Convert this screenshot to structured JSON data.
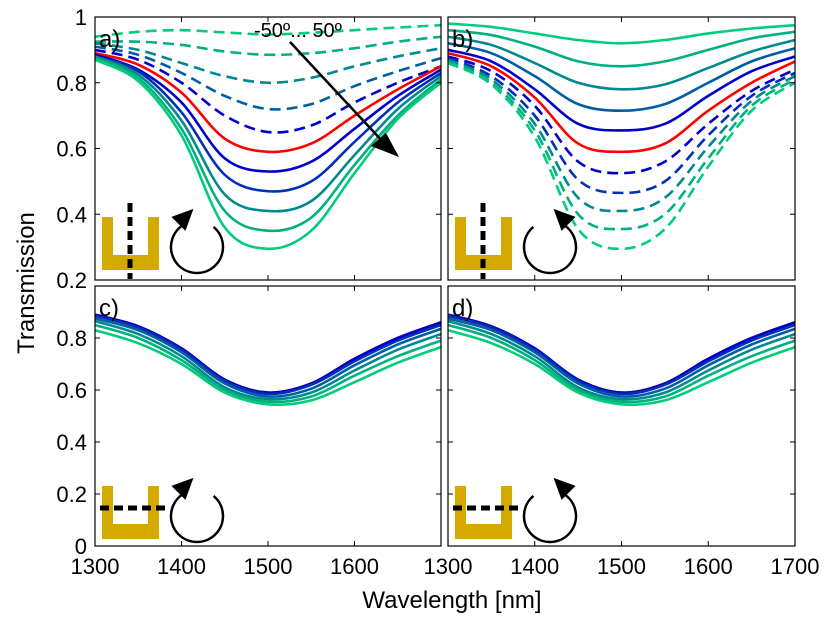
{
  "figure": {
    "ylabel": "Transmission",
    "xlabel": "Wavelength [nm]",
    "angle_annotation": "-50º... 50º"
  },
  "colors": {
    "normal": "#ff0000",
    "ramp": [
      "#0000cc",
      "#0030b8",
      "#005ea4",
      "#008a8f",
      "#00b080",
      "#00cc7a"
    ],
    "icon": "#d4a900",
    "frame": "#000000"
  },
  "chart_data": [
    {
      "type": "line",
      "panel": "a)",
      "x": [
        1300,
        1350,
        1400,
        1450,
        1500,
        1550,
        1600,
        1650,
        1700
      ],
      "xlim": [
        1300,
        1700
      ],
      "ylim": [
        0.2,
        1.0
      ],
      "yticks": [
        0.2,
        0.4,
        0.6,
        0.8,
        1.0
      ],
      "series": [
        {
          "values": [
            0.94,
            0.955,
            0.96,
            0.953,
            0.947,
            0.952,
            0.96,
            0.968,
            0.975
          ],
          "style": "dashed",
          "shade": 5
        },
        {
          "values": [
            0.925,
            0.925,
            0.915,
            0.895,
            0.885,
            0.89,
            0.905,
            0.925,
            0.94
          ],
          "style": "dashed",
          "shade": 4
        },
        {
          "values": [
            0.92,
            0.9,
            0.86,
            0.82,
            0.8,
            0.815,
            0.85,
            0.88,
            0.905
          ],
          "style": "dashed",
          "shade": 3
        },
        {
          "values": [
            0.91,
            0.885,
            0.83,
            0.76,
            0.72,
            0.735,
            0.79,
            0.835,
            0.875
          ],
          "style": "dashed",
          "shade": 2
        },
        {
          "values": [
            0.9,
            0.87,
            0.8,
            0.7,
            0.65,
            0.67,
            0.74,
            0.8,
            0.85
          ],
          "style": "dashed",
          "shade": 0
        },
        {
          "values": [
            0.89,
            0.855,
            0.77,
            0.63,
            0.59,
            0.615,
            0.7,
            0.78,
            0.85
          ],
          "style": "solid",
          "shade": -1
        },
        {
          "values": [
            0.885,
            0.84,
            0.74,
            0.57,
            0.53,
            0.56,
            0.66,
            0.76,
            0.84
          ],
          "style": "solid",
          "shade": 0
        },
        {
          "values": [
            0.88,
            0.835,
            0.71,
            0.52,
            0.47,
            0.5,
            0.62,
            0.74,
            0.83
          ],
          "style": "solid",
          "shade": 1
        },
        {
          "values": [
            0.88,
            0.825,
            0.685,
            0.46,
            0.41,
            0.44,
            0.58,
            0.72,
            0.82
          ],
          "style": "solid",
          "shade": 3
        },
        {
          "values": [
            0.875,
            0.815,
            0.66,
            0.41,
            0.35,
            0.39,
            0.55,
            0.7,
            0.81
          ],
          "style": "solid",
          "shade": 4
        },
        {
          "values": [
            0.87,
            0.805,
            0.64,
            0.36,
            0.295,
            0.35,
            0.525,
            0.69,
            0.8
          ],
          "style": "solid",
          "shade": 5
        }
      ]
    },
    {
      "type": "line",
      "panel": "b)",
      "x": [
        1300,
        1350,
        1400,
        1450,
        1500,
        1550,
        1600,
        1650,
        1700
      ],
      "xlim": [
        1300,
        1700
      ],
      "ylim": [
        0.2,
        1.0
      ],
      "yticks": [
        0.2,
        0.4,
        0.6,
        0.8,
        1.0
      ],
      "series": [
        {
          "values": [
            0.98,
            0.97,
            0.95,
            0.93,
            0.92,
            0.93,
            0.95,
            0.965,
            0.975
          ],
          "style": "solid",
          "shade": 5
        },
        {
          "values": [
            0.96,
            0.945,
            0.91,
            0.865,
            0.85,
            0.865,
            0.9,
            0.935,
            0.955
          ],
          "style": "solid",
          "shade": 4
        },
        {
          "values": [
            0.94,
            0.915,
            0.86,
            0.8,
            0.78,
            0.795,
            0.845,
            0.895,
            0.93
          ],
          "style": "solid",
          "shade": 3
        },
        {
          "values": [
            0.92,
            0.89,
            0.82,
            0.735,
            0.715,
            0.735,
            0.8,
            0.865,
            0.905
          ],
          "style": "solid",
          "shade": 2
        },
        {
          "values": [
            0.9,
            0.865,
            0.78,
            0.675,
            0.655,
            0.675,
            0.76,
            0.835,
            0.88
          ],
          "style": "solid",
          "shade": 0
        },
        {
          "values": [
            0.89,
            0.85,
            0.755,
            0.615,
            0.59,
            0.615,
            0.715,
            0.8,
            0.865
          ],
          "style": "solid",
          "shade": -1
        },
        {
          "values": [
            0.88,
            0.835,
            0.73,
            0.56,
            0.525,
            0.56,
            0.675,
            0.775,
            0.84
          ],
          "style": "dashed",
          "shade": 0
        },
        {
          "values": [
            0.875,
            0.82,
            0.7,
            0.505,
            0.465,
            0.5,
            0.64,
            0.76,
            0.83
          ],
          "style": "dashed",
          "shade": 1
        },
        {
          "values": [
            0.87,
            0.81,
            0.675,
            0.45,
            0.41,
            0.45,
            0.605,
            0.745,
            0.82
          ],
          "style": "dashed",
          "shade": 3
        },
        {
          "values": [
            0.865,
            0.8,
            0.655,
            0.4,
            0.355,
            0.4,
            0.57,
            0.73,
            0.81
          ],
          "style": "dashed",
          "shade": 4
        },
        {
          "values": [
            0.86,
            0.795,
            0.635,
            0.355,
            0.295,
            0.355,
            0.545,
            0.715,
            0.8
          ],
          "style": "dashed",
          "shade": 5
        }
      ]
    },
    {
      "type": "line",
      "panel": "c)",
      "x": [
        1300,
        1350,
        1400,
        1450,
        1500,
        1550,
        1600,
        1650,
        1700
      ],
      "xlim": [
        1300,
        1700
      ],
      "ylim": [
        0.0,
        1.0
      ],
      "yticks": [
        0.0,
        0.2,
        0.4,
        0.6,
        0.8
      ],
      "series": [
        {
          "values": [
            0.89,
            0.845,
            0.76,
            0.64,
            0.59,
            0.625,
            0.72,
            0.8,
            0.86
          ],
          "style": "solid",
          "shade": -1
        },
        {
          "values": [
            0.89,
            0.845,
            0.76,
            0.64,
            0.59,
            0.625,
            0.72,
            0.8,
            0.86
          ],
          "style": "solid",
          "shade": 0
        },
        {
          "values": [
            0.885,
            0.84,
            0.755,
            0.635,
            0.585,
            0.62,
            0.71,
            0.79,
            0.85
          ],
          "style": "solid",
          "shade": 1
        },
        {
          "values": [
            0.875,
            0.83,
            0.745,
            0.625,
            0.575,
            0.605,
            0.695,
            0.775,
            0.835
          ],
          "style": "solid",
          "shade": 2
        },
        {
          "values": [
            0.865,
            0.815,
            0.73,
            0.61,
            0.565,
            0.59,
            0.675,
            0.755,
            0.815
          ],
          "style": "solid",
          "shade": 3
        },
        {
          "values": [
            0.85,
            0.8,
            0.715,
            0.6,
            0.555,
            0.575,
            0.655,
            0.73,
            0.79
          ],
          "style": "solid",
          "shade": 4
        },
        {
          "values": [
            0.83,
            0.78,
            0.7,
            0.59,
            0.545,
            0.56,
            0.63,
            0.705,
            0.765
          ],
          "style": "solid",
          "shade": 5
        }
      ]
    },
    {
      "type": "line",
      "panel": "d)",
      "x": [
        1300,
        1350,
        1400,
        1450,
        1500,
        1550,
        1600,
        1650,
        1700
      ],
      "xlim": [
        1300,
        1700
      ],
      "ylim": [
        0.0,
        1.0
      ],
      "yticks": [
        0.0,
        0.2,
        0.4,
        0.6,
        0.8
      ],
      "series": [
        {
          "values": [
            0.89,
            0.845,
            0.76,
            0.64,
            0.59,
            0.625,
            0.72,
            0.8,
            0.86
          ],
          "style": "solid",
          "shade": -1
        },
        {
          "values": [
            0.89,
            0.845,
            0.76,
            0.64,
            0.59,
            0.625,
            0.72,
            0.8,
            0.86
          ],
          "style": "solid",
          "shade": 0
        },
        {
          "values": [
            0.885,
            0.84,
            0.755,
            0.635,
            0.585,
            0.62,
            0.71,
            0.79,
            0.85
          ],
          "style": "solid",
          "shade": 1
        },
        {
          "values": [
            0.875,
            0.83,
            0.745,
            0.625,
            0.575,
            0.605,
            0.695,
            0.775,
            0.835
          ],
          "style": "solid",
          "shade": 2
        },
        {
          "values": [
            0.865,
            0.815,
            0.73,
            0.61,
            0.565,
            0.59,
            0.675,
            0.755,
            0.815
          ],
          "style": "solid",
          "shade": 3
        },
        {
          "values": [
            0.85,
            0.8,
            0.715,
            0.6,
            0.555,
            0.575,
            0.655,
            0.73,
            0.79
          ],
          "style": "solid",
          "shade": 4
        },
        {
          "values": [
            0.83,
            0.78,
            0.7,
            0.59,
            0.545,
            0.56,
            0.63,
            0.705,
            0.765
          ],
          "style": "solid",
          "shade": 5
        }
      ]
    }
  ]
}
